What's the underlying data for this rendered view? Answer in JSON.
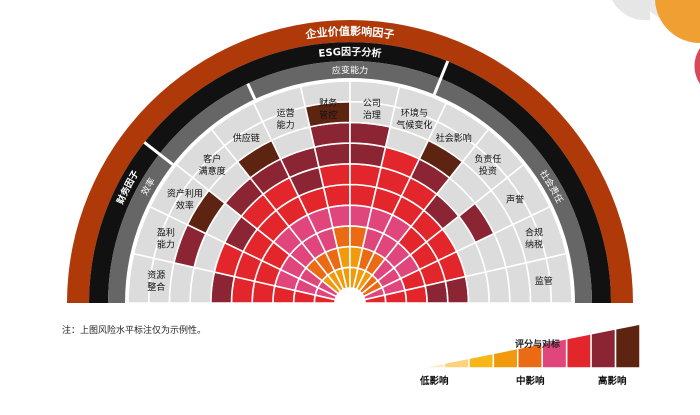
{
  "title_outer": "企业价值影响因子",
  "title_inner": "ESG因子分析",
  "band_groups": [
    {
      "key": "finance",
      "label": "财务因子"
    },
    {
      "key": "efficiency",
      "label": "效率"
    },
    {
      "key": "resilience",
      "label": "应变能力"
    },
    {
      "key": "social",
      "label": "社会责任"
    }
  ],
  "sectors": [
    {
      "label": [
        "资源",
        "整合"
      ],
      "risk": [
        6,
        6,
        6,
        6,
        6,
        7,
        0,
        0,
        0,
        0
      ]
    },
    {
      "label": [
        "盈利",
        "能力"
      ],
      "risk": [
        5,
        5,
        5,
        6,
        6,
        6,
        0,
        7,
        0,
        0
      ]
    },
    {
      "label": [
        "资产利用",
        "效率"
      ],
      "risk": [
        5,
        5,
        5,
        6,
        6,
        7,
        0,
        8,
        0,
        0
      ]
    },
    {
      "label": [
        "客户",
        "满意度"
      ],
      "risk": [
        3,
        4,
        5,
        5,
        6,
        6,
        7,
        0,
        0,
        0
      ]
    },
    {
      "label": [
        "供应链"
      ],
      "risk": [
        3,
        4,
        5,
        5,
        6,
        6,
        7,
        8,
        0,
        0
      ]
    },
    {
      "label": [
        "运营",
        "能力"
      ],
      "risk": [
        3,
        4,
        5,
        5,
        6,
        7,
        7,
        0,
        0,
        0
      ]
    },
    {
      "label": [
        "财务",
        "管控"
      ],
      "risk": [
        3,
        3,
        4,
        5,
        6,
        6,
        7,
        7,
        8,
        0
      ]
    },
    {
      "label": [
        "公司",
        "治理"
      ],
      "risk": [
        3,
        3,
        4,
        5,
        6,
        6,
        7,
        7,
        0,
        0
      ]
    },
    {
      "label": [
        "环境与",
        "气候变化"
      ],
      "risk": [
        3,
        4,
        5,
        5,
        6,
        6,
        6,
        0,
        0,
        0
      ]
    },
    {
      "label": [
        "社会影响"
      ],
      "risk": [
        3,
        4,
        5,
        5,
        6,
        6,
        7,
        8,
        0,
        0
      ]
    },
    {
      "label": [
        "负责任",
        "投资"
      ],
      "risk": [
        4,
        5,
        5,
        6,
        6,
        7,
        0,
        0,
        0,
        0
      ]
    },
    {
      "label": [
        "声誉"
      ],
      "risk": [
        4,
        5,
        5,
        6,
        6,
        0,
        7,
        0,
        0,
        0
      ]
    },
    {
      "label": [
        "合规",
        "纳税"
      ],
      "risk": [
        5,
        5,
        6,
        6,
        6,
        0,
        0,
        0,
        0,
        0
      ]
    },
    {
      "label": [
        "监管"
      ],
      "risk": [
        6,
        6,
        6,
        7,
        7,
        0,
        0,
        0,
        0,
        0
      ]
    }
  ],
  "note": "注：上图风险水平标注仅为示例性。",
  "legend": {
    "title": "评分与对标",
    "low": "低影响",
    "mid": "中影响",
    "high": "高影响",
    "colors": [
      "#fde9c4",
      "#fcd27a",
      "#f7b718",
      "#f29a0e",
      "#ea6b13",
      "#e0457b",
      "#e3262c",
      "#8c2533",
      "#5e2412"
    ]
  },
  "colors": {
    "outer_band": "#b0390a",
    "dark_band": "#111111",
    "grey_band": "#666666",
    "empty_cell": "#dcdcdc"
  }
}
